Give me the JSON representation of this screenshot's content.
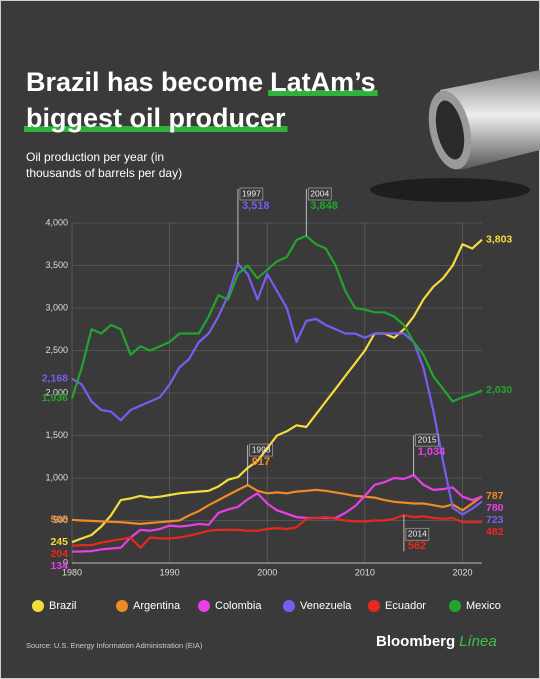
{
  "chart_data": {
    "type": "line",
    "title": [
      "Brazil has become",
      "LatAm’s",
      "biggest oil producer"
    ],
    "subtitle": [
      "Oil production per year (in",
      "thousands of barrels per day)"
    ],
    "source": "Source: U.S. Energy Information Administration (EIA)",
    "brand": [
      "Bloomberg",
      "Línea"
    ],
    "x": [
      1980,
      1981,
      1982,
      1983,
      1984,
      1985,
      1986,
      1987,
      1988,
      1989,
      1990,
      1991,
      1992,
      1993,
      1994,
      1995,
      1996,
      1997,
      1998,
      1999,
      2000,
      2001,
      2002,
      2003,
      2004,
      2005,
      2006,
      2007,
      2008,
      2009,
      2010,
      2011,
      2012,
      2013,
      2014,
      2015,
      2016,
      2017,
      2018,
      2019,
      2020,
      2021,
      2022
    ],
    "xlim": [
      1980,
      2022
    ],
    "xticks": [
      1980,
      1990,
      2000,
      2010,
      2020
    ],
    "ylim": [
      0,
      4000
    ],
    "yticks": [
      0,
      500,
      {
        "value": 1000,
        "label": "1,000"
      },
      {
        "value": 1500,
        "label": "1,500"
      },
      {
        "value": 2000,
        "label": "2,000"
      },
      {
        "value": 2500,
        "label": "2,500"
      },
      {
        "value": 3000,
        "label": "3,000"
      },
      {
        "value": 3500,
        "label": "3,500"
      },
      {
        "value": 4000,
        "label": "4,000"
      }
    ],
    "grid": true,
    "series": [
      {
        "name": "Brazil",
        "color": "#f4dd3a",
        "values": [
          245,
          290,
          330,
          430,
          560,
          740,
          760,
          790,
          770,
          780,
          800,
          820,
          830,
          840,
          850,
          900,
          980,
          1010,
          1120,
          1200,
          1350,
          1500,
          1550,
          1620,
          1600,
          1750,
          1900,
          2050,
          2200,
          2350,
          2500,
          2700,
          2700,
          2650,
          2750,
          2900,
          3100,
          3250,
          3350,
          3500,
          3750,
          3700,
          3803
        ],
        "value_labels": [
          "245",
          null,
          null,
          null,
          null,
          null,
          null,
          null,
          null,
          null,
          null,
          null,
          null,
          null,
          null,
          null,
          null,
          null,
          null,
          null,
          null,
          null,
          null,
          null,
          null,
          null,
          null,
          null,
          null,
          null,
          null,
          null,
          null,
          null,
          null,
          null,
          null,
          null,
          null,
          null,
          null,
          null,
          "3,803"
        ]
      },
      {
        "name": "Argentina",
        "color": "#f0892a",
        "values": [
          508,
          500,
          495,
          490,
          485,
          480,
          470,
          460,
          470,
          480,
          490,
          500,
          560,
          610,
          680,
          740,
          800,
          860,
          917,
          850,
          820,
          830,
          820,
          840,
          850,
          860,
          850,
          830,
          810,
          790,
          780,
          770,
          740,
          720,
          710,
          700,
          700,
          680,
          660,
          690,
          620,
          700,
          787
        ],
        "value_labels": [
          "508",
          null,
          null,
          null,
          null,
          null,
          null,
          null,
          null,
          null,
          null,
          null,
          null,
          null,
          null,
          null,
          null,
          null,
          "917",
          null,
          null,
          null,
          null,
          null,
          null,
          null,
          null,
          null,
          null,
          null,
          null,
          null,
          null,
          null,
          null,
          null,
          null,
          null,
          null,
          null,
          null,
          null,
          "787"
        ]
      },
      {
        "name": "Colombia",
        "color": "#e840e6",
        "values": [
          134,
          135,
          140,
          160,
          170,
          180,
          300,
          390,
          380,
          400,
          440,
          430,
          440,
          460,
          450,
          590,
          630,
          660,
          750,
          820,
          700,
          620,
          580,
          540,
          530,
          530,
          530,
          530,
          590,
          670,
          790,
          920,
          950,
          1000,
          990,
          1034,
          920,
          860,
          870,
          890,
          780,
          740,
          780
        ],
        "value_labels": [
          "134",
          null,
          null,
          null,
          null,
          null,
          null,
          null,
          null,
          null,
          null,
          null,
          null,
          null,
          null,
          null,
          null,
          null,
          null,
          null,
          null,
          null,
          null,
          null,
          null,
          null,
          null,
          null,
          null,
          null,
          null,
          null,
          null,
          null,
          null,
          "1,034",
          null,
          null,
          null,
          null,
          null,
          null,
          "780"
        ]
      },
      {
        "name": "Venezuela",
        "color": "#7b5cf2",
        "values": [
          2168,
          2100,
          1900,
          1800,
          1780,
          1680,
          1800,
          1850,
          1900,
          1950,
          2100,
          2300,
          2400,
          2600,
          2700,
          2900,
          3150,
          3518,
          3400,
          3100,
          3400,
          3200,
          3000,
          2600,
          2850,
          2870,
          2800,
          2750,
          2700,
          2700,
          2650,
          2700,
          2700,
          2700,
          2700,
          2600,
          2300,
          1800,
          1200,
          650,
          570,
          640,
          723
        ],
        "value_labels": [
          "2,168",
          null,
          null,
          null,
          null,
          null,
          null,
          null,
          null,
          null,
          null,
          null,
          null,
          null,
          null,
          null,
          null,
          "3,518",
          null,
          null,
          null,
          null,
          null,
          null,
          null,
          null,
          null,
          null,
          null,
          null,
          null,
          null,
          null,
          null,
          null,
          null,
          null,
          null,
          null,
          null,
          null,
          null,
          "723"
        ]
      },
      {
        "name": "Ecuador",
        "color": "#e8281f",
        "values": [
          204,
          210,
          210,
          240,
          260,
          280,
          300,
          180,
          300,
          290,
          290,
          300,
          320,
          350,
          380,
          390,
          390,
          390,
          380,
          380,
          400,
          410,
          400,
          420,
          520,
          530,
          540,
          520,
          500,
          490,
          490,
          500,
          500,
          520,
          562,
          540,
          550,
          530,
          520,
          530,
          480,
          480,
          482
        ],
        "value_labels": [
          "204",
          null,
          null,
          null,
          null,
          null,
          null,
          null,
          null,
          null,
          null,
          null,
          null,
          null,
          null,
          null,
          null,
          null,
          null,
          null,
          null,
          null,
          null,
          null,
          null,
          null,
          null,
          null,
          null,
          null,
          null,
          null,
          null,
          null,
          "562",
          null,
          null,
          null,
          null,
          null,
          null,
          null,
          "482"
        ]
      },
      {
        "name": "Mexico",
        "color": "#22a52c",
        "values": [
          1936,
          2300,
          2750,
          2700,
          2800,
          2750,
          2450,
          2550,
          2500,
          2550,
          2600,
          2700,
          2700,
          2700,
          2900,
          3150,
          3100,
          3400,
          3500,
          3350,
          3450,
          3550,
          3600,
          3800,
          3848,
          3750,
          3700,
          3500,
          3200,
          3000,
          2980,
          2950,
          2950,
          2900,
          2800,
          2600,
          2450,
          2200,
          2050,
          1900,
          1950,
          1980,
          2030
        ],
        "value_labels": [
          "1,936",
          null,
          null,
          null,
          null,
          null,
          null,
          null,
          null,
          null,
          null,
          null,
          null,
          null,
          null,
          null,
          null,
          null,
          null,
          null,
          null,
          null,
          null,
          null,
          "3,848",
          null,
          null,
          null,
          null,
          null,
          null,
          null,
          null,
          null,
          null,
          null,
          null,
          null,
          null,
          null,
          null,
          null,
          "2,030"
        ]
      }
    ]
  }
}
